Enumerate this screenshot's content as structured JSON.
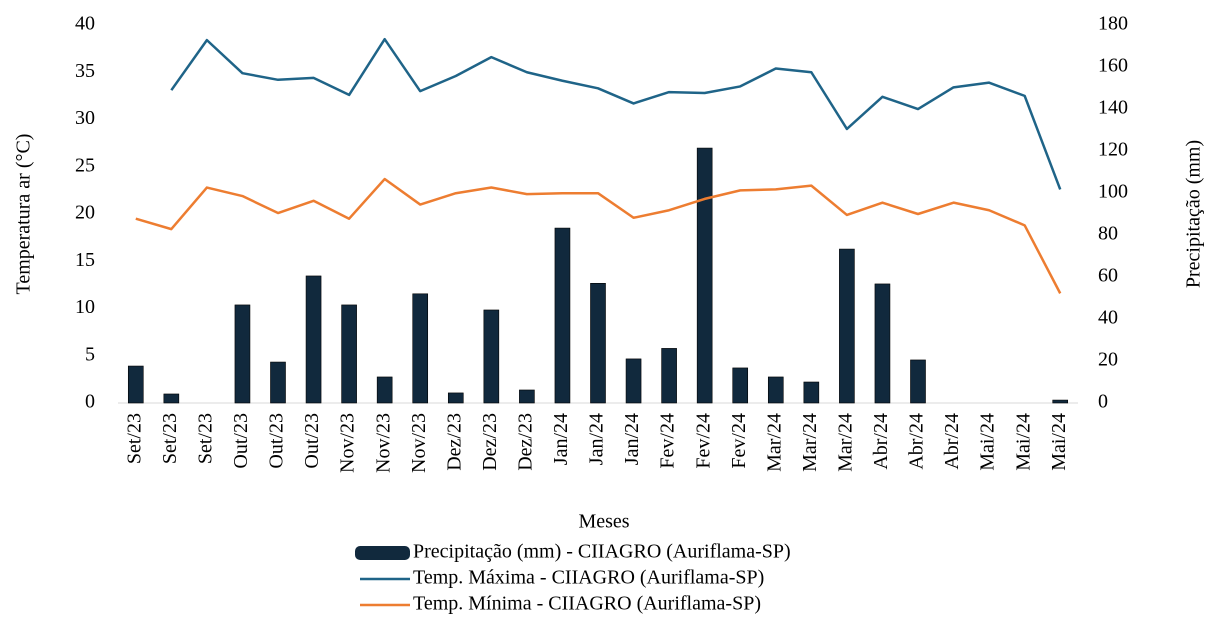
{
  "chart_data": {
    "type": "bar",
    "xlabel": "Meses",
    "ylabel": "Temperatura ar  (°C)",
    "y2label": "Precipitação (mm)",
    "categories": [
      "Set/23",
      "Set/23",
      "Set/23",
      "Out/23",
      "Out/23",
      "Out/23",
      "Nov/23",
      "Nov/23",
      "Nov/23",
      "Dez/23",
      "Dez/23",
      "Dez/23",
      "Jan/24",
      "Jan/24",
      "Jan/24",
      "Fev/24",
      "Fev/24",
      "Fev/24",
      "Mar/24",
      "Mar/24",
      "Mar/24",
      "Abr/24",
      "Abr/24",
      "Abr/24",
      "Mai/24",
      "Mai/24",
      "Mai/24"
    ],
    "series": [
      {
        "name": "Precipitação (mm) - CIIAGRO (Auriflama-SP)",
        "type": "bar",
        "axis": "y2",
        "color": "#11293d",
        "values": [
          17.6,
          4.3,
          0,
          46.7,
          19.5,
          60.5,
          46.7,
          12.4,
          52,
          4.8,
          44.3,
          6.2,
          83.3,
          57,
          21,
          26,
          121.4,
          16.7,
          12.4,
          10,
          73.3,
          56.7,
          20.5,
          0,
          0,
          0,
          1.4
        ]
      },
      {
        "name": "Temp. Máxima - CIIAGRO (Auriflama-SP)",
        "type": "line",
        "color": "#1f6488",
        "values": [
          null,
          33.1,
          38.4,
          34.9,
          34.2,
          34.4,
          32.6,
          38.5,
          33.0,
          34.6,
          36.6,
          35.0,
          34.1,
          33.3,
          31.7,
          32.9,
          32.8,
          33.5,
          35.4,
          35.0,
          29.0,
          32.4,
          31.1,
          33.4,
          33.9,
          32.5,
          22.6
        ]
      },
      {
        "name": "Temp. Mínima - CIIAGRO (Auriflama-SP)",
        "type": "line",
        "color": "#ed7d31",
        "values": [
          19.5,
          18.4,
          22.8,
          21.9,
          20.1,
          21.4,
          19.5,
          23.7,
          21.0,
          22.2,
          22.8,
          22.1,
          22.2,
          22.2,
          19.6,
          20.4,
          21.6,
          22.5,
          22.6,
          23.0,
          19.9,
          21.2,
          20.0,
          21.2,
          20.4,
          18.8,
          11.6
        ]
      }
    ],
    "ylim": [
      0,
      40
    ],
    "yticks": [
      0,
      5,
      10,
      15,
      20,
      25,
      30,
      35,
      40
    ],
    "y2lim": [
      0,
      180
    ],
    "y2ticks": [
      0,
      20,
      40,
      60,
      80,
      100,
      120,
      140,
      160,
      180
    ]
  }
}
